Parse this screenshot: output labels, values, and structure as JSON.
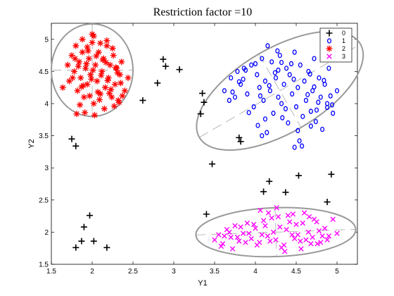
{
  "chart_data": {
    "type": "scatter",
    "title": "Restriction factor =10",
    "xlabel": "Y1",
    "ylabel": "Y2",
    "xlim": [
      1.5,
      5.25
    ],
    "ylim": [
      1.5,
      5.25
    ],
    "xticks": [
      1.5,
      2,
      2.5,
      3,
      3.5,
      4,
      4.5,
      5
    ],
    "yticks": [
      1.5,
      2,
      2.5,
      3,
      3.5,
      4,
      4.5,
      5
    ],
    "grid": false,
    "legend_position": "top-right",
    "colors": {
      "0": "#000000",
      "1": "#0000ff",
      "2": "#ff0000",
      "3": "#ff00ff",
      "ellipse": "#999999"
    },
    "series": [
      {
        "name": "0",
        "marker": "plus",
        "x": [
          1.75,
          1.8,
          1.8,
          1.87,
          1.9,
          1.97,
          2.02,
          2.18,
          2.62,
          2.8,
          2.87,
          2.9,
          3.07,
          3.33,
          3.35,
          3.37,
          3.4,
          3.47,
          3.8,
          3.82,
          4.1,
          4.17,
          4.37,
          4.53,
          4.88,
          4.93
        ],
        "y": [
          3.45,
          3.34,
          1.76,
          1.86,
          2.08,
          2.26,
          1.86,
          1.76,
          4.05,
          4.32,
          4.69,
          4.58,
          4.53,
          3.84,
          4.16,
          4.02,
          2.28,
          3.06,
          3.47,
          3.41,
          2.63,
          2.79,
          2.62,
          2.88,
          2.47,
          2.9
        ]
      },
      {
        "name": "1",
        "marker": "circle",
        "x": [
          3.62,
          3.7,
          3.75,
          3.78,
          3.82,
          3.86,
          3.9,
          3.95,
          3.98,
          4.02,
          4.05,
          4.08,
          4.1,
          4.12,
          4.15,
          4.18,
          4.2,
          4.22,
          4.25,
          4.28,
          4.3,
          4.32,
          4.35,
          4.38,
          4.4,
          4.42,
          4.45,
          4.48,
          4.5,
          4.52,
          4.55,
          4.58,
          4.6,
          4.62,
          4.65,
          4.68,
          4.7,
          4.72,
          4.75,
          4.78,
          4.8,
          4.82,
          4.85,
          4.88,
          4.9,
          4.95,
          5.0,
          3.68,
          3.85,
          3.92,
          4.0,
          4.06,
          4.14,
          4.24,
          4.33,
          4.44,
          4.54,
          4.64,
          4.74,
          4.84,
          4.94,
          3.72,
          3.88,
          4.03,
          4.17,
          4.27,
          4.37,
          4.47,
          4.57,
          4.67,
          4.77,
          3.8,
          4.12,
          4.32,
          4.52,
          4.72,
          4.92,
          4.08,
          4.28,
          4.48,
          4.68,
          4.88
        ],
        "y": [
          4.2,
          4.4,
          4.1,
          4.5,
          4.3,
          4.55,
          4.15,
          4.6,
          3.95,
          4.45,
          4.25,
          4.7,
          4.05,
          4.35,
          4.9,
          4.2,
          4.65,
          3.85,
          4.4,
          4.1,
          4.75,
          4.0,
          4.3,
          4.55,
          3.7,
          4.45,
          4.15,
          4.8,
          3.95,
          4.25,
          4.6,
          3.8,
          4.35,
          4.05,
          4.5,
          3.65,
          4.2,
          4.7,
          3.9,
          4.4,
          4.1,
          3.6,
          4.3,
          4.0,
          4.55,
          3.85,
          4.2,
          4.05,
          4.38,
          3.86,
          4.62,
          4.12,
          3.55,
          4.48,
          3.78,
          4.62,
          3.42,
          4.14,
          3.72,
          4.36,
          3.98,
          4.18,
          4.52,
          3.66,
          4.28,
          4.82,
          3.92,
          4.38,
          3.34,
          4.46,
          4.02,
          4.34,
          3.76,
          4.64,
          3.58,
          4.26,
          4.12,
          3.5,
          4.52,
          3.32,
          3.88,
          3.94
        ]
      },
      {
        "name": "2",
        "marker": "star",
        "x": [
          1.64,
          1.7,
          1.72,
          1.75,
          1.78,
          1.8,
          1.82,
          1.84,
          1.86,
          1.88,
          1.9,
          1.92,
          1.94,
          1.96,
          1.98,
          2.0,
          2.02,
          2.04,
          2.06,
          2.08,
          2.1,
          2.12,
          2.14,
          2.16,
          2.18,
          2.2,
          2.22,
          2.24,
          2.26,
          2.28,
          2.3,
          2.32,
          2.34,
          2.36,
          2.4,
          2.44,
          1.76,
          1.83,
          1.89,
          1.95,
          2.01,
          2.07,
          2.13,
          2.19,
          2.25,
          2.31,
          2.37,
          1.79,
          1.87,
          1.93,
          1.99,
          2.05,
          2.11,
          2.17,
          2.23,
          2.29,
          2.35,
          1.85,
          1.97,
          2.09,
          2.21,
          2.33,
          1.91,
          2.03,
          2.15,
          2.27,
          1.81,
          2.0,
          2.02,
          1.88,
          2.18,
          1.94,
          2.1
        ],
        "y": [
          4.25,
          4.6,
          4.35,
          4.75,
          4.5,
          4.9,
          4.2,
          4.65,
          4.4,
          4.8,
          4.1,
          4.55,
          4.3,
          4.7,
          4.45,
          4.95,
          4.0,
          4.6,
          4.35,
          4.8,
          4.15,
          4.5,
          4.7,
          4.25,
          4.9,
          4.4,
          4.6,
          4.1,
          4.75,
          4.3,
          4.55,
          4.05,
          4.45,
          4.65,
          4.2,
          4.4,
          4.4,
          4.58,
          4.28,
          4.82,
          4.52,
          4.18,
          4.68,
          4.36,
          4.86,
          4.48,
          4.12,
          4.7,
          4.26,
          4.62,
          4.38,
          4.74,
          4.44,
          4.64,
          4.22,
          4.56,
          4.32,
          3.98,
          4.12,
          4.06,
          4.16,
          4.02,
          3.86,
          3.82,
          3.92,
          3.96,
          3.84,
          5.08,
          5.05,
          5.0,
          4.98,
          4.88,
          4.94
        ]
      },
      {
        "name": "3",
        "marker": "x",
        "x": [
          3.5,
          3.55,
          3.6,
          3.65,
          3.7,
          3.75,
          3.8,
          3.85,
          3.9,
          3.95,
          4.0,
          4.05,
          4.1,
          4.15,
          4.2,
          4.25,
          4.3,
          4.35,
          4.4,
          4.45,
          4.5,
          4.55,
          4.6,
          4.65,
          4.7,
          4.75,
          4.8,
          4.85,
          4.9,
          4.95,
          5.0,
          3.58,
          3.68,
          3.78,
          3.88,
          3.98,
          4.08,
          4.18,
          4.28,
          4.38,
          4.48,
          4.58,
          4.68,
          4.78,
          4.88,
          3.62,
          3.72,
          3.82,
          3.92,
          4.02,
          4.12,
          4.22,
          4.32,
          4.42,
          4.52,
          4.62,
          4.72,
          4.82,
          4.06,
          4.26,
          4.46,
          4.66,
          4.16,
          4.36,
          4.56,
          4.76
        ],
        "y": [
          1.88,
          1.96,
          1.82,
          2.04,
          1.92,
          2.1,
          1.86,
          1.98,
          2.14,
          1.9,
          2.06,
          1.84,
          2.18,
          1.94,
          2.22,
          1.88,
          2.08,
          1.8,
          2.26,
          1.96,
          2.12,
          1.86,
          2.3,
          2.0,
          1.92,
          2.16,
          1.84,
          2.06,
          1.94,
          2.2,
          1.98,
          1.78,
          2.0,
          1.92,
          1.84,
          2.12,
          1.96,
          1.86,
          2.24,
          2.04,
          1.9,
          2.14,
          1.82,
          2.02,
          1.88,
          1.94,
          1.74,
          2.08,
          1.98,
          1.8,
          2.1,
          2.0,
          1.76,
          2.16,
          1.96,
          1.88,
          2.2,
          1.94,
          2.34,
          2.38,
          2.28,
          2.24,
          2.3,
          1.7,
          1.74,
          1.82
        ]
      }
    ],
    "ellipses": [
      {
        "series": "2",
        "center": [
          2.0,
          4.52
        ],
        "semi_x": 0.5,
        "semi_y": 0.72,
        "angle_deg": 0
      },
      {
        "series": "1",
        "center": [
          4.3,
          4.2
        ],
        "semi_x": 1.14,
        "semi_y": 0.66,
        "angle_deg": -30
      },
      {
        "series": "3",
        "center": [
          4.25,
          2.0
        ],
        "semi_x": 0.98,
        "semi_y": 0.38,
        "angle_deg": -2
      }
    ]
  }
}
